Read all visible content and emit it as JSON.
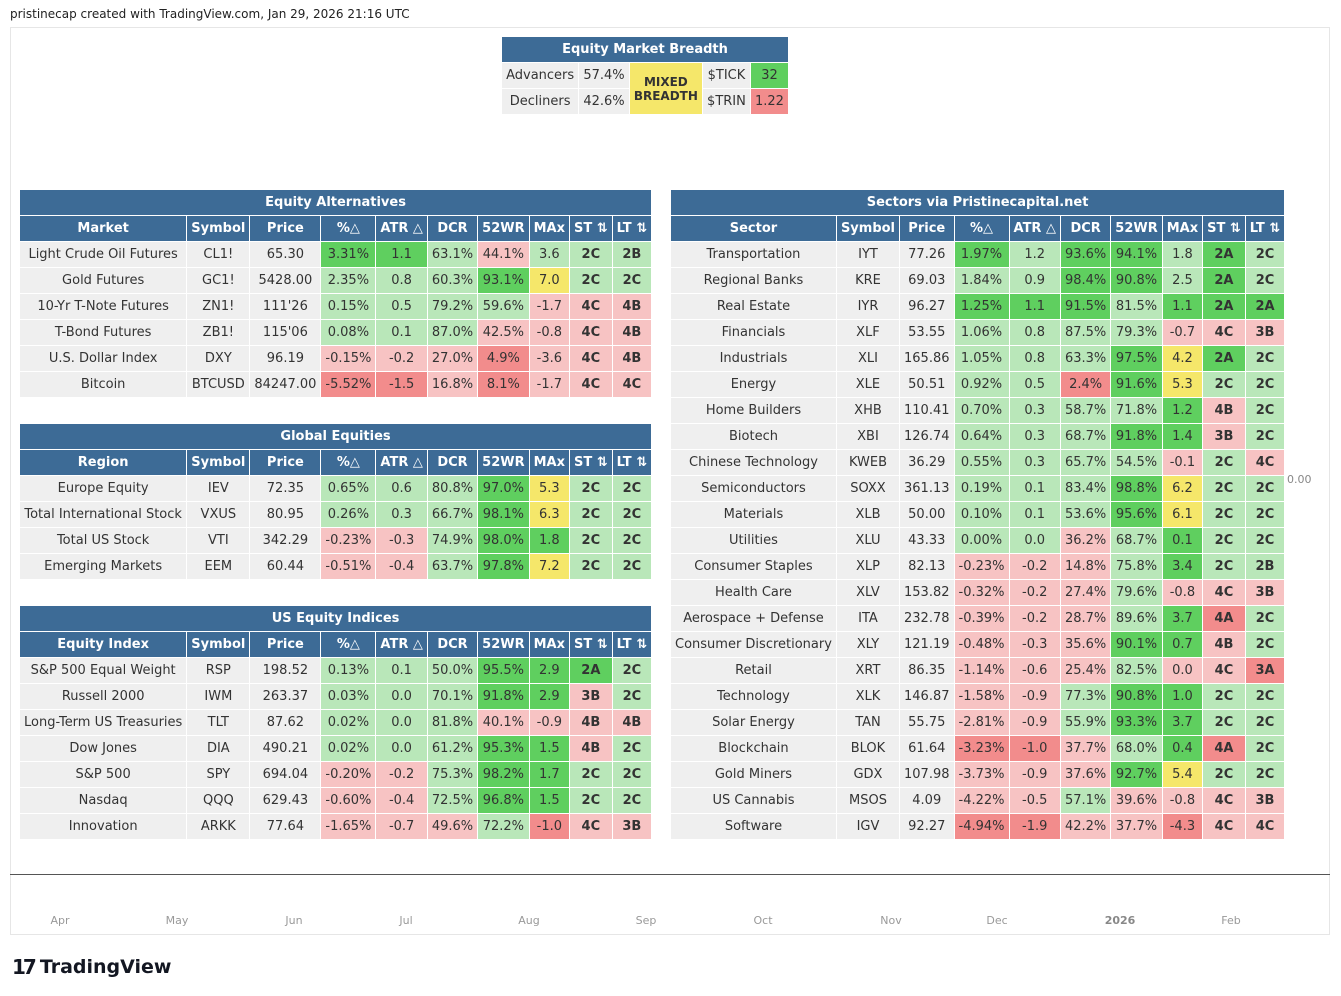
{
  "watermark": "pristinecap created with TradingView.com, Jan 29, 2026 21:16 UTC",
  "price_readout": "0.00",
  "months": [
    "Apr",
    "May",
    "Jun",
    "Jul",
    "Aug",
    "Sep",
    "Oct",
    "Nov",
    "Dec",
    "2026",
    "Feb"
  ],
  "logo_text": "TradingView",
  "colors": {
    "header": "#3d6b96",
    "neutral": "#efefef",
    "g_strong": "#5fcf5f",
    "g_light": "#b9e7b9",
    "r_strong": "#f28c8c",
    "r_light": "#f7c3c3",
    "yellow": "#f5e76a"
  },
  "breadth": {
    "title": "Equity Market Breadth",
    "advancers_label": "Advancers",
    "advancers_value": "57.4%",
    "decliners_label": "Decliners",
    "decliners_value": "42.6%",
    "status_line1": "MIXED",
    "status_line2": "BREADTH",
    "tick_label": "$TICK",
    "tick_value": "32",
    "trin_label": "$TRIN",
    "trin_value": "1.22"
  },
  "columns": [
    "Symbol",
    "Price",
    "%△",
    "ATR △",
    "DCR",
    "52WR",
    "MAx",
    "ST ⇅",
    "LT ⇅"
  ],
  "left_sections": [
    {
      "title": "Equity Alternatives",
      "first_col": "Market",
      "rows": [
        {
          "name": "Light Crude Oil Futures",
          "symbol": "CL1!",
          "price": "65.30",
          "pct": "3.31%",
          "pct_c": "gs",
          "atr": "1.1",
          "atr_c": "gs",
          "dcr": "63.1%",
          "dcr_c": "gl",
          "wr": "44.1%",
          "wr_c": "rl",
          "max": "3.6",
          "max_c": "gl",
          "st": "2C",
          "st_c": "gl",
          "lt": "2B",
          "lt_c": "gl"
        },
        {
          "name": "Gold Futures",
          "symbol": "GC1!",
          "price": "5428.00",
          "pct": "2.35%",
          "pct_c": "gl",
          "atr": "0.8",
          "atr_c": "gl",
          "dcr": "60.3%",
          "dcr_c": "gl",
          "wr": "93.1%",
          "wr_c": "gs",
          "max": "7.0",
          "max_c": "y",
          "st": "2C",
          "st_c": "gl",
          "lt": "2C",
          "lt_c": "gl"
        },
        {
          "name": "10-Yr T-Note Futures",
          "symbol": "ZN1!",
          "price": "111'26",
          "pct": "0.15%",
          "pct_c": "gl",
          "atr": "0.5",
          "atr_c": "gl",
          "dcr": "79.2%",
          "dcr_c": "gl",
          "wr": "59.6%",
          "wr_c": "gl",
          "max": "-1.7",
          "max_c": "rl",
          "st": "4C",
          "st_c": "rl",
          "lt": "4B",
          "lt_c": "rl"
        },
        {
          "name": "T-Bond Futures",
          "symbol": "ZB1!",
          "price": "115'06",
          "pct": "0.08%",
          "pct_c": "gl",
          "atr": "0.1",
          "atr_c": "gl",
          "dcr": "87.0%",
          "dcr_c": "gl",
          "wr": "42.5%",
          "wr_c": "rl",
          "max": "-0.8",
          "max_c": "rl",
          "st": "4C",
          "st_c": "rl",
          "lt": "4B",
          "lt_c": "rl"
        },
        {
          "name": "U.S. Dollar Index",
          "symbol": "DXY",
          "price": "96.19",
          "pct": "-0.15%",
          "pct_c": "rl",
          "atr": "-0.2",
          "atr_c": "rl",
          "dcr": "27.0%",
          "dcr_c": "rl",
          "wr": "4.9%",
          "wr_c": "rs",
          "max": "-3.6",
          "max_c": "rl",
          "st": "4C",
          "st_c": "rl",
          "lt": "4B",
          "lt_c": "rl"
        },
        {
          "name": "Bitcoin",
          "symbol": "BTCUSD",
          "price": "84247.00",
          "pct": "-5.52%",
          "pct_c": "rs",
          "atr": "-1.5",
          "atr_c": "rs",
          "dcr": "16.8%",
          "dcr_c": "rl",
          "wr": "8.1%",
          "wr_c": "rs",
          "max": "-1.7",
          "max_c": "rl",
          "st": "4C",
          "st_c": "rl",
          "lt": "4C",
          "lt_c": "rl"
        }
      ]
    },
    {
      "title": "Global Equities",
      "first_col": "Region",
      "rows": [
        {
          "name": "Europe Equity",
          "symbol": "IEV",
          "price": "72.35",
          "pct": "0.65%",
          "pct_c": "gl",
          "atr": "0.6",
          "atr_c": "gl",
          "dcr": "80.8%",
          "dcr_c": "gl",
          "wr": "97.0%",
          "wr_c": "gs",
          "max": "5.3",
          "max_c": "y",
          "st": "2C",
          "st_c": "gl",
          "lt": "2C",
          "lt_c": "gl"
        },
        {
          "name": "Total International Stock",
          "symbol": "VXUS",
          "price": "80.95",
          "pct": "0.26%",
          "pct_c": "gl",
          "atr": "0.3",
          "atr_c": "gl",
          "dcr": "66.7%",
          "dcr_c": "gl",
          "wr": "98.1%",
          "wr_c": "gs",
          "max": "6.3",
          "max_c": "y",
          "st": "2C",
          "st_c": "gl",
          "lt": "2C",
          "lt_c": "gl"
        },
        {
          "name": "Total US Stock",
          "symbol": "VTI",
          "price": "342.29",
          "pct": "-0.23%",
          "pct_c": "rl",
          "atr": "-0.3",
          "atr_c": "rl",
          "dcr": "74.9%",
          "dcr_c": "gl",
          "wr": "98.0%",
          "wr_c": "gs",
          "max": "1.8",
          "max_c": "gs",
          "st": "2C",
          "st_c": "gl",
          "lt": "2C",
          "lt_c": "gl"
        },
        {
          "name": "Emerging Markets",
          "symbol": "EEM",
          "price": "60.44",
          "pct": "-0.51%",
          "pct_c": "rl",
          "atr": "-0.4",
          "atr_c": "rl",
          "dcr": "63.7%",
          "dcr_c": "gl",
          "wr": "97.8%",
          "wr_c": "gs",
          "max": "7.2",
          "max_c": "y",
          "st": "2C",
          "st_c": "gl",
          "lt": "2C",
          "lt_c": "gl"
        }
      ]
    },
    {
      "title": "US Equity Indices",
      "first_col": "Equity Index",
      "rows": [
        {
          "name": "S&P 500 Equal Weight",
          "symbol": "RSP",
          "price": "198.52",
          "pct": "0.13%",
          "pct_c": "gl",
          "atr": "0.1",
          "atr_c": "gl",
          "dcr": "50.0%",
          "dcr_c": "gl",
          "wr": "95.5%",
          "wr_c": "gs",
          "max": "2.9",
          "max_c": "gs",
          "st": "2A",
          "st_c": "gs",
          "lt": "2C",
          "lt_c": "gl"
        },
        {
          "name": "Russell 2000",
          "symbol": "IWM",
          "price": "263.37",
          "pct": "0.03%",
          "pct_c": "gl",
          "atr": "0.0",
          "atr_c": "gl",
          "dcr": "70.1%",
          "dcr_c": "gl",
          "wr": "91.8%",
          "wr_c": "gs",
          "max": "2.9",
          "max_c": "gs",
          "st": "3B",
          "st_c": "rl",
          "lt": "2C",
          "lt_c": "gl"
        },
        {
          "name": "Long-Term US Treasuries",
          "symbol": "TLT",
          "price": "87.62",
          "pct": "0.02%",
          "pct_c": "gl",
          "atr": "0.0",
          "atr_c": "gl",
          "dcr": "81.8%",
          "dcr_c": "gl",
          "wr": "40.1%",
          "wr_c": "rl",
          "max": "-0.9",
          "max_c": "rl",
          "st": "4B",
          "st_c": "rl",
          "lt": "4B",
          "lt_c": "rl"
        },
        {
          "name": "Dow Jones",
          "symbol": "DIA",
          "price": "490.21",
          "pct": "0.02%",
          "pct_c": "gl",
          "atr": "0.0",
          "atr_c": "gl",
          "dcr": "61.2%",
          "dcr_c": "gl",
          "wr": "95.3%",
          "wr_c": "gs",
          "max": "1.5",
          "max_c": "gs",
          "st": "4B",
          "st_c": "rl",
          "lt": "2C",
          "lt_c": "gl"
        },
        {
          "name": "S&P 500",
          "symbol": "SPY",
          "price": "694.04",
          "pct": "-0.20%",
          "pct_c": "rl",
          "atr": "-0.2",
          "atr_c": "rl",
          "dcr": "75.3%",
          "dcr_c": "gl",
          "wr": "98.2%",
          "wr_c": "gs",
          "max": "1.7",
          "max_c": "gs",
          "st": "2C",
          "st_c": "gl",
          "lt": "2C",
          "lt_c": "gl"
        },
        {
          "name": "Nasdaq",
          "symbol": "QQQ",
          "price": "629.43",
          "pct": "-0.60%",
          "pct_c": "rl",
          "atr": "-0.4",
          "atr_c": "rl",
          "dcr": "72.5%",
          "dcr_c": "gl",
          "wr": "96.8%",
          "wr_c": "gs",
          "max": "1.5",
          "max_c": "gs",
          "st": "2C",
          "st_c": "gl",
          "lt": "2C",
          "lt_c": "gl"
        },
        {
          "name": "Innovation",
          "symbol": "ARKK",
          "price": "77.64",
          "pct": "-1.65%",
          "pct_c": "rl",
          "atr": "-0.7",
          "atr_c": "rl",
          "dcr": "49.6%",
          "dcr_c": "rl",
          "wr": "72.2%",
          "wr_c": "gl",
          "max": "-1.0",
          "max_c": "rs",
          "st": "4C",
          "st_c": "rl",
          "lt": "3B",
          "lt_c": "rl"
        }
      ]
    }
  ],
  "sectors": {
    "title": "Sectors via Pristinecapital.net",
    "first_col": "Sector",
    "rows": [
      {
        "name": "Transportation",
        "symbol": "IYT",
        "price": "77.26",
        "pct": "1.97%",
        "pct_c": "gs",
        "atr": "1.2",
        "atr_c": "gl",
        "dcr": "93.6%",
        "dcr_c": "gs",
        "wr": "94.1%",
        "wr_c": "gs",
        "max": "1.8",
        "max_c": "gl",
        "st": "2A",
        "st_c": "gs",
        "lt": "2C",
        "lt_c": "gl"
      },
      {
        "name": "Regional Banks",
        "symbol": "KRE",
        "price": "69.03",
        "pct": "1.84%",
        "pct_c": "gl",
        "atr": "0.9",
        "atr_c": "gl",
        "dcr": "98.4%",
        "dcr_c": "gs",
        "wr": "90.8%",
        "wr_c": "gs",
        "max": "2.5",
        "max_c": "gl",
        "st": "2A",
        "st_c": "gs",
        "lt": "2C",
        "lt_c": "gl"
      },
      {
        "name": "Real Estate",
        "symbol": "IYR",
        "price": "96.27",
        "pct": "1.25%",
        "pct_c": "gs",
        "atr": "1.1",
        "atr_c": "gs",
        "dcr": "91.5%",
        "dcr_c": "gs",
        "wr": "81.5%",
        "wr_c": "gl",
        "max": "1.1",
        "max_c": "gs",
        "st": "2A",
        "st_c": "gs",
        "lt": "2A",
        "lt_c": "gs"
      },
      {
        "name": "Financials",
        "symbol": "XLF",
        "price": "53.55",
        "pct": "1.06%",
        "pct_c": "gl",
        "atr": "0.8",
        "atr_c": "gl",
        "dcr": "87.5%",
        "dcr_c": "gl",
        "wr": "79.3%",
        "wr_c": "gl",
        "max": "-0.7",
        "max_c": "rl",
        "st": "4C",
        "st_c": "rl",
        "lt": "3B",
        "lt_c": "rl"
      },
      {
        "name": "Industrials",
        "symbol": "XLI",
        "price": "165.86",
        "pct": "1.05%",
        "pct_c": "gl",
        "atr": "0.8",
        "atr_c": "gl",
        "dcr": "63.3%",
        "dcr_c": "gl",
        "wr": "97.5%",
        "wr_c": "gs",
        "max": "4.2",
        "max_c": "y",
        "st": "2A",
        "st_c": "gs",
        "lt": "2C",
        "lt_c": "gl"
      },
      {
        "name": "Energy",
        "symbol": "XLE",
        "price": "50.51",
        "pct": "0.92%",
        "pct_c": "gl",
        "atr": "0.5",
        "atr_c": "gl",
        "dcr": "2.4%",
        "dcr_c": "rs",
        "wr": "91.6%",
        "wr_c": "gs",
        "max": "5.3",
        "max_c": "y",
        "st": "2C",
        "st_c": "gl",
        "lt": "2C",
        "lt_c": "gl"
      },
      {
        "name": "Home Builders",
        "symbol": "XHB",
        "price": "110.41",
        "pct": "0.70%",
        "pct_c": "gl",
        "atr": "0.3",
        "atr_c": "gl",
        "dcr": "58.7%",
        "dcr_c": "gl",
        "wr": "71.8%",
        "wr_c": "gl",
        "max": "1.2",
        "max_c": "gs",
        "st": "4B",
        "st_c": "rl",
        "lt": "2C",
        "lt_c": "gl"
      },
      {
        "name": "Biotech",
        "symbol": "XBI",
        "price": "126.74",
        "pct": "0.64%",
        "pct_c": "gl",
        "atr": "0.3",
        "atr_c": "gl",
        "dcr": "68.7%",
        "dcr_c": "gl",
        "wr": "91.8%",
        "wr_c": "gs",
        "max": "1.4",
        "max_c": "gs",
        "st": "3B",
        "st_c": "rl",
        "lt": "2C",
        "lt_c": "gl"
      },
      {
        "name": "Chinese Technology",
        "symbol": "KWEB",
        "price": "36.29",
        "pct": "0.55%",
        "pct_c": "gl",
        "atr": "0.3",
        "atr_c": "gl",
        "dcr": "65.7%",
        "dcr_c": "gl",
        "wr": "54.5%",
        "wr_c": "gl",
        "max": "-0.1",
        "max_c": "rl",
        "st": "2C",
        "st_c": "gl",
        "lt": "4C",
        "lt_c": "rl"
      },
      {
        "name": "Semiconductors",
        "symbol": "SOXX",
        "price": "361.13",
        "pct": "0.19%",
        "pct_c": "gl",
        "atr": "0.1",
        "atr_c": "gl",
        "dcr": "83.4%",
        "dcr_c": "gl",
        "wr": "98.8%",
        "wr_c": "gs",
        "max": "6.2",
        "max_c": "y",
        "st": "2C",
        "st_c": "gl",
        "lt": "2C",
        "lt_c": "gl"
      },
      {
        "name": "Materials",
        "symbol": "XLB",
        "price": "50.00",
        "pct": "0.10%",
        "pct_c": "gl",
        "atr": "0.1",
        "atr_c": "gl",
        "dcr": "53.6%",
        "dcr_c": "gl",
        "wr": "95.6%",
        "wr_c": "gs",
        "max": "6.1",
        "max_c": "y",
        "st": "2C",
        "st_c": "gl",
        "lt": "2C",
        "lt_c": "gl"
      },
      {
        "name": "Utilities",
        "symbol": "XLU",
        "price": "43.33",
        "pct": "0.00%",
        "pct_c": "gl",
        "atr": "0.0",
        "atr_c": "gl",
        "dcr": "36.2%",
        "dcr_c": "rl",
        "wr": "68.7%",
        "wr_c": "gl",
        "max": "0.1",
        "max_c": "gs",
        "st": "2C",
        "st_c": "gl",
        "lt": "2C",
        "lt_c": "gl"
      },
      {
        "name": "Consumer Staples",
        "symbol": "XLP",
        "price": "82.13",
        "pct": "-0.23%",
        "pct_c": "rl",
        "atr": "-0.2",
        "atr_c": "rl",
        "dcr": "14.8%",
        "dcr_c": "rl",
        "wr": "75.8%",
        "wr_c": "gl",
        "max": "3.4",
        "max_c": "gs",
        "st": "2C",
        "st_c": "gl",
        "lt": "2B",
        "lt_c": "gl"
      },
      {
        "name": "Health Care",
        "symbol": "XLV",
        "price": "153.82",
        "pct": "-0.32%",
        "pct_c": "rl",
        "atr": "-0.2",
        "atr_c": "rl",
        "dcr": "27.4%",
        "dcr_c": "rl",
        "wr": "79.6%",
        "wr_c": "gl",
        "max": "-0.8",
        "max_c": "rl",
        "st": "4C",
        "st_c": "rl",
        "lt": "3B",
        "lt_c": "rl"
      },
      {
        "name": "Aerospace + Defense",
        "symbol": "ITA",
        "price": "232.78",
        "pct": "-0.39%",
        "pct_c": "rl",
        "atr": "-0.2",
        "atr_c": "rl",
        "dcr": "28.7%",
        "dcr_c": "rl",
        "wr": "89.6%",
        "wr_c": "gl",
        "max": "3.7",
        "max_c": "gs",
        "st": "4A",
        "st_c": "rs",
        "lt": "2C",
        "lt_c": "gl"
      },
      {
        "name": "Consumer Discretionary",
        "symbol": "XLY",
        "price": "121.19",
        "pct": "-0.48%",
        "pct_c": "rl",
        "atr": "-0.3",
        "atr_c": "rl",
        "dcr": "35.6%",
        "dcr_c": "rl",
        "wr": "90.1%",
        "wr_c": "gs",
        "max": "0.7",
        "max_c": "gs",
        "st": "4B",
        "st_c": "rl",
        "lt": "2C",
        "lt_c": "gl"
      },
      {
        "name": "Retail",
        "symbol": "XRT",
        "price": "86.35",
        "pct": "-1.14%",
        "pct_c": "rl",
        "atr": "-0.6",
        "atr_c": "rl",
        "dcr": "25.4%",
        "dcr_c": "rl",
        "wr": "82.5%",
        "wr_c": "gl",
        "max": "0.0",
        "max_c": "rl",
        "st": "4C",
        "st_c": "rl",
        "lt": "3A",
        "lt_c": "rs"
      },
      {
        "name": "Technology",
        "symbol": "XLK",
        "price": "146.87",
        "pct": "-1.58%",
        "pct_c": "rl",
        "atr": "-0.9",
        "atr_c": "rl",
        "dcr": "77.3%",
        "dcr_c": "gl",
        "wr": "90.8%",
        "wr_c": "gs",
        "max": "1.0",
        "max_c": "gs",
        "st": "2C",
        "st_c": "gl",
        "lt": "2C",
        "lt_c": "gl"
      },
      {
        "name": "Solar Energy",
        "symbol": "TAN",
        "price": "55.75",
        "pct": "-2.81%",
        "pct_c": "rl",
        "atr": "-0.9",
        "atr_c": "rl",
        "dcr": "55.9%",
        "dcr_c": "gl",
        "wr": "93.3%",
        "wr_c": "gs",
        "max": "3.7",
        "max_c": "gs",
        "st": "2C",
        "st_c": "gl",
        "lt": "2C",
        "lt_c": "gl"
      },
      {
        "name": "Blockchain",
        "symbol": "BLOK",
        "price": "61.64",
        "pct": "-3.23%",
        "pct_c": "rs",
        "atr": "-1.0",
        "atr_c": "rs",
        "dcr": "37.7%",
        "dcr_c": "rl",
        "wr": "68.0%",
        "wr_c": "gl",
        "max": "0.4",
        "max_c": "gs",
        "st": "4A",
        "st_c": "rs",
        "lt": "2C",
        "lt_c": "gl"
      },
      {
        "name": "Gold Miners",
        "symbol": "GDX",
        "price": "107.98",
        "pct": "-3.73%",
        "pct_c": "rl",
        "atr": "-0.9",
        "atr_c": "rl",
        "dcr": "37.6%",
        "dcr_c": "rl",
        "wr": "92.7%",
        "wr_c": "gs",
        "max": "5.4",
        "max_c": "y",
        "st": "2C",
        "st_c": "gl",
        "lt": "2C",
        "lt_c": "gl"
      },
      {
        "name": "US Cannabis",
        "symbol": "MSOS",
        "price": "4.09",
        "pct": "-4.22%",
        "pct_c": "rl",
        "atr": "-0.5",
        "atr_c": "rl",
        "dcr": "57.1%",
        "dcr_c": "gl",
        "wr": "39.6%",
        "wr_c": "rl",
        "max": "-0.8",
        "max_c": "rl",
        "st": "4C",
        "st_c": "rl",
        "lt": "3B",
        "lt_c": "rl"
      },
      {
        "name": "Software",
        "symbol": "IGV",
        "price": "92.27",
        "pct": "-4.94%",
        "pct_c": "rs",
        "atr": "-1.9",
        "atr_c": "rs",
        "dcr": "42.2%",
        "dcr_c": "rl",
        "wr": "37.7%",
        "wr_c": "rl",
        "max": "-4.3",
        "max_c": "rs",
        "st": "4C",
        "st_c": "rl",
        "lt": "4C",
        "lt_c": "rl"
      }
    ]
  }
}
